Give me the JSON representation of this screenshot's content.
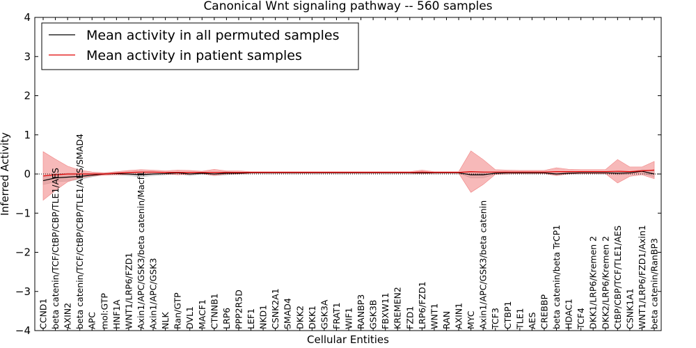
{
  "chart_data": {
    "type": "line",
    "title": "Canonical Wnt signaling pathway -- 560 samples",
    "xlabel": "Cellular Entities",
    "ylabel": "Inferred Activity",
    "ylim": [
      -4,
      4
    ],
    "yticks": [
      -4,
      -3,
      -2,
      -1,
      0,
      1,
      2,
      3,
      4
    ],
    "reference_line": 0,
    "legend_position": "top-left",
    "categories": [
      "CCND1",
      "beta catenin/TCF/CtBP/CBP/TLE1/AES",
      "AXIN2",
      "beta catenin/TCF/CtBP/CBP/TLE1/AES/SMAD4",
      "APC",
      "mol:GTP",
      "HNF1A",
      "WNT1/LRP6/FZD1",
      "Axin1/APC/GSK3/beta catenin/Macf1",
      "Axin1/APC/GSK3",
      "NLK",
      "Ran/GTP",
      "DVL1",
      "MACF1",
      "CTNNB1",
      "LRP6",
      "PPP2R5D",
      "LEF1",
      "NKD1",
      "CSNK2A1",
      "SMAD4",
      "DKK2",
      "DKK1",
      "GSK3A",
      "FRAT1",
      "WIF1",
      "RANBP3",
      "GSK3B",
      "FBXW11",
      "KREMEN2",
      "FZD1",
      "LRP6/FZD1",
      "WNT1",
      "RAN",
      "AXIN1",
      "MYC",
      "Axin1/APC/GSK3/beta catenin",
      "TCF3",
      "CTBP1",
      "TLE1",
      "AES",
      "CREBBP",
      "beta catenin/beta TrCP1",
      "HDAC1",
      "TCF4",
      "DKK1/LRP6/Kremen 2",
      "DKK2/LRP6/Kremen 2",
      "CtBP/CBP/TCF/TLE1/AES",
      "CSNK1A1",
      "WNT1/LRP6/FZD1/Axin1",
      "beta catenin/RanBP3"
    ],
    "series": [
      {
        "name": "Mean activity in all permuted samples",
        "color": "#000000",
        "values": [
          -0.17,
          -0.1,
          -0.08,
          -0.06,
          -0.03,
          0.0,
          0.01,
          0.0,
          -0.02,
          0.0,
          0.01,
          0.03,
          0.0,
          0.02,
          0.0,
          0.02,
          0.02,
          0.03,
          0.03,
          0.03,
          0.03,
          0.03,
          0.03,
          0.03,
          0.03,
          0.03,
          0.03,
          0.03,
          0.03,
          0.03,
          0.03,
          0.03,
          0.03,
          0.03,
          0.03,
          -0.02,
          -0.02,
          0.02,
          0.03,
          0.03,
          0.03,
          0.03,
          0.0,
          0.02,
          0.03,
          0.03,
          0.03,
          0.02,
          0.03,
          0.07,
          0.0
        ],
        "band": [
          0.1,
          0.1,
          0.1,
          0.08,
          0.04,
          0.02,
          0.03,
          0.04,
          0.05,
          0.04,
          0.03,
          0.02,
          0.04,
          0.02,
          0.04,
          0.04,
          0.02,
          0.0,
          0.0,
          0.0,
          0.0,
          0.0,
          0.0,
          0.0,
          0.0,
          0.0,
          0.0,
          0.0,
          0.0,
          0.0,
          0.0,
          0.0,
          0.0,
          0.0,
          0.0,
          0.08,
          0.08,
          0.02,
          0.0,
          0.0,
          0.0,
          0.0,
          0.03,
          0.02,
          0.0,
          0.0,
          0.0,
          0.04,
          0.02,
          0.04,
          0.08
        ],
        "band_color": "#b0b0b0"
      },
      {
        "name": "Mean activity in patient samples",
        "color": "#e00000",
        "values": [
          -0.05,
          -0.02,
          0.0,
          0.0,
          0.0,
          0.0,
          0.02,
          0.04,
          0.05,
          0.05,
          0.04,
          0.04,
          0.04,
          0.04,
          0.04,
          0.04,
          0.04,
          0.04,
          0.04,
          0.04,
          0.04,
          0.04,
          0.04,
          0.04,
          0.04,
          0.04,
          0.04,
          0.04,
          0.04,
          0.04,
          0.04,
          0.05,
          0.04,
          0.04,
          0.04,
          0.06,
          0.05,
          0.05,
          0.05,
          0.05,
          0.05,
          0.05,
          0.06,
          0.06,
          0.06,
          0.06,
          0.06,
          0.07,
          0.06,
          0.08,
          0.1
        ],
        "band": [
          0.62,
          0.4,
          0.2,
          0.1,
          0.05,
          0.03,
          0.04,
          0.05,
          0.06,
          0.05,
          0.04,
          0.06,
          0.05,
          0.03,
          0.08,
          0.04,
          0.04,
          0.02,
          0.02,
          0.02,
          0.02,
          0.02,
          0.02,
          0.02,
          0.02,
          0.02,
          0.02,
          0.02,
          0.02,
          0.02,
          0.02,
          0.05,
          0.02,
          0.02,
          0.02,
          0.53,
          0.32,
          0.06,
          0.05,
          0.04,
          0.04,
          0.04,
          0.1,
          0.06,
          0.05,
          0.05,
          0.05,
          0.3,
          0.12,
          0.1,
          0.22
        ],
        "band_color": "#f08080"
      }
    ]
  }
}
